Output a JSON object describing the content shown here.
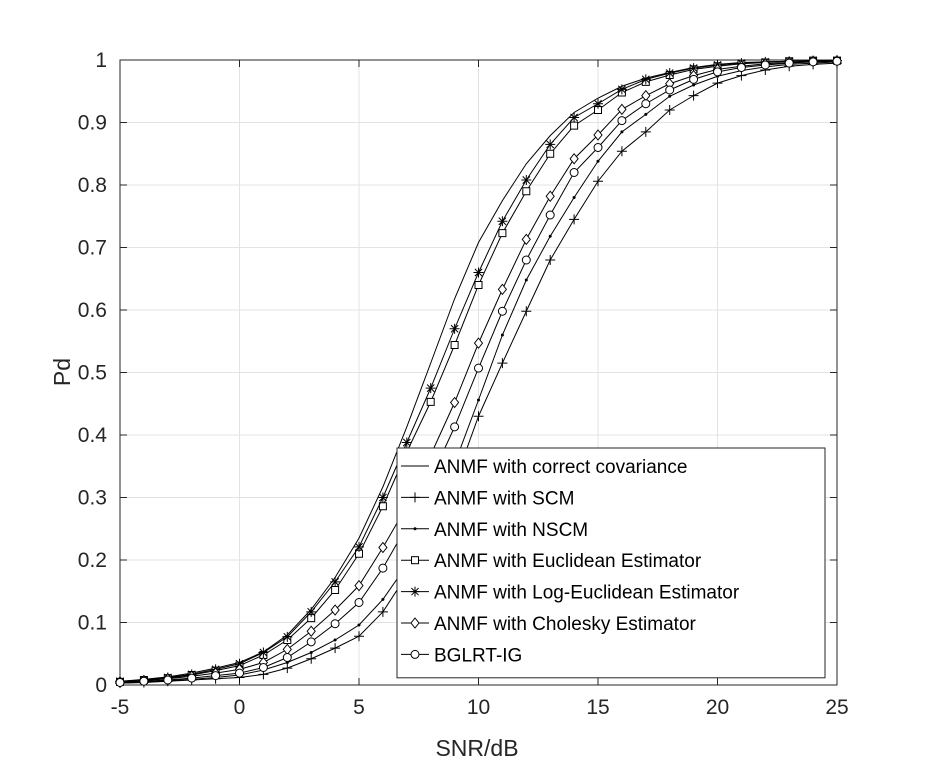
{
  "chart_data": {
    "type": "line",
    "title": "",
    "xlabel": "SNR/dB",
    "ylabel": "Pd",
    "xlim": [
      -5,
      25
    ],
    "ylim": [
      0,
      1
    ],
    "xticks": [
      "-5",
      "0",
      "5",
      "10",
      "15",
      "20",
      "25"
    ],
    "yticks": [
      "0",
      "0.1",
      "0.2",
      "0.3",
      "0.4",
      "0.5",
      "0.6",
      "0.7",
      "0.8",
      "0.9",
      "1"
    ],
    "grid": true,
    "legend_position": "bottom-right",
    "x": [
      -5,
      -4,
      -3,
      -2,
      -1,
      0,
      1,
      2,
      3,
      4,
      5,
      6,
      7,
      8,
      9,
      10,
      11,
      12,
      13,
      14,
      15,
      16,
      17,
      18,
      19,
      20,
      21,
      22,
      23,
      24,
      25
    ],
    "series": [
      {
        "name": "ANMF with correct covariance",
        "marker": "none",
        "values": [
          0.006,
          0.009,
          0.013,
          0.019,
          0.027,
          0.036,
          0.053,
          0.08,
          0.121,
          0.172,
          0.235,
          0.317,
          0.413,
          0.515,
          0.618,
          0.708,
          0.775,
          0.834,
          0.879,
          0.916,
          0.939,
          0.958,
          0.971,
          0.98,
          0.988,
          0.993,
          0.996,
          0.997,
          0.998,
          0.999,
          0.999
        ]
      },
      {
        "name": "ANMF with SCM",
        "marker": "plus",
        "values": [
          0.003,
          0.004,
          0.006,
          0.008,
          0.01,
          0.012,
          0.017,
          0.027,
          0.042,
          0.059,
          0.078,
          0.117,
          0.176,
          0.248,
          0.324,
          0.43,
          0.515,
          0.598,
          0.68,
          0.745,
          0.806,
          0.854,
          0.885,
          0.92,
          0.943,
          0.963,
          0.975,
          0.984,
          0.99,
          0.993,
          0.995
        ]
      },
      {
        "name": "ANMF with NSCM",
        "marker": "dot",
        "values": [
          0.003,
          0.005,
          0.007,
          0.009,
          0.012,
          0.016,
          0.024,
          0.036,
          0.052,
          0.072,
          0.096,
          0.137,
          0.192,
          0.272,
          0.354,
          0.456,
          0.56,
          0.648,
          0.718,
          0.78,
          0.838,
          0.885,
          0.913,
          0.942,
          0.96,
          0.974,
          0.983,
          0.989,
          0.993,
          0.995,
          0.997
        ]
      },
      {
        "name": "ANMF with Euclidean Estimator",
        "marker": "square",
        "values": [
          0.005,
          0.008,
          0.011,
          0.016,
          0.023,
          0.031,
          0.048,
          0.072,
          0.107,
          0.152,
          0.21,
          0.286,
          0.373,
          0.453,
          0.544,
          0.64,
          0.723,
          0.79,
          0.85,
          0.895,
          0.92,
          0.948,
          0.965,
          0.976,
          0.985,
          0.99,
          0.994,
          0.996,
          0.998,
          0.999,
          0.999
        ]
      },
      {
        "name": "ANMF with Log-Euclidean Estimator",
        "marker": "star",
        "values": [
          0.006,
          0.008,
          0.012,
          0.017,
          0.025,
          0.034,
          0.052,
          0.077,
          0.117,
          0.165,
          0.221,
          0.3,
          0.388,
          0.475,
          0.57,
          0.66,
          0.742,
          0.808,
          0.865,
          0.908,
          0.93,
          0.953,
          0.969,
          0.979,
          0.987,
          0.992,
          0.995,
          0.997,
          0.998,
          0.999,
          0.999
        ]
      },
      {
        "name": "ANMF with Cholesky Estimator",
        "marker": "diamond",
        "values": [
          0.005,
          0.007,
          0.01,
          0.014,
          0.019,
          0.025,
          0.036,
          0.057,
          0.086,
          0.12,
          0.159,
          0.22,
          0.286,
          0.368,
          0.452,
          0.547,
          0.633,
          0.713,
          0.782,
          0.842,
          0.88,
          0.921,
          0.943,
          0.962,
          0.975,
          0.985,
          0.99,
          0.994,
          0.996,
          0.998,
          0.999
        ]
      },
      {
        "name": "BGLRT-IG",
        "marker": "circle",
        "values": [
          0.004,
          0.006,
          0.008,
          0.011,
          0.015,
          0.019,
          0.028,
          0.044,
          0.069,
          0.098,
          0.132,
          0.187,
          0.254,
          0.33,
          0.413,
          0.507,
          0.598,
          0.68,
          0.752,
          0.82,
          0.86,
          0.903,
          0.93,
          0.952,
          0.969,
          0.981,
          0.988,
          0.992,
          0.995,
          0.997,
          0.998
        ]
      }
    ]
  }
}
